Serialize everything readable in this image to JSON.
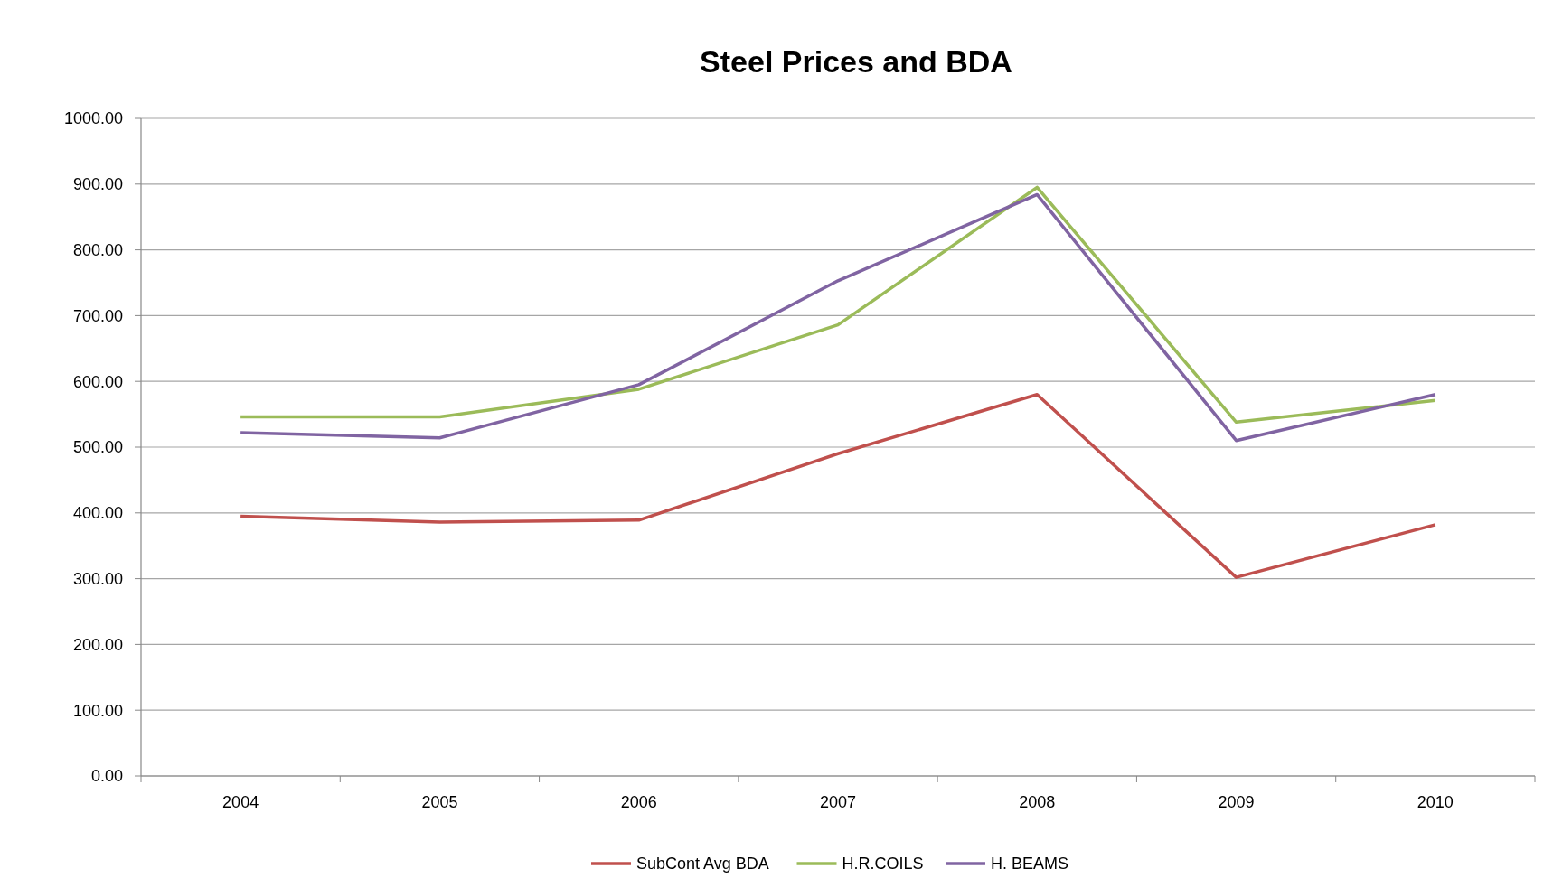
{
  "chart_data": {
    "type": "line",
    "title": "Steel Prices and BDA",
    "categories": [
      "2004",
      "2005",
      "2006",
      "2007",
      "2008",
      "2009",
      "2010"
    ],
    "series": [
      {
        "name": "SubCont Avg BDA",
        "color": "#c0504d",
        "values": [
          395,
          386,
          389,
          490,
          580,
          302,
          382
        ]
      },
      {
        "name": "H.R.COILS",
        "color": "#9bbb59",
        "values": [
          546,
          546,
          588,
          686,
          895,
          538,
          571
        ]
      },
      {
        "name": "H. BEAMS",
        "color": "#8064a2",
        "values": [
          522,
          514,
          595,
          753,
          884,
          510,
          580
        ]
      }
    ],
    "ylim": [
      0,
      1000
    ],
    "yticks": [
      {
        "value": 0,
        "label": "0.00"
      },
      {
        "value": 100,
        "label": "100.00"
      },
      {
        "value": 200,
        "label": "200.00"
      },
      {
        "value": 300,
        "label": "300.00"
      },
      {
        "value": 400,
        "label": "400.00"
      },
      {
        "value": 500,
        "label": "500.00"
      },
      {
        "value": 600,
        "label": "600.00"
      },
      {
        "value": 700,
        "label": "700.00"
      },
      {
        "value": 800,
        "label": "800.00"
      },
      {
        "value": 900,
        "label": "900.00"
      },
      {
        "value": 1000,
        "label": "1000.00"
      }
    ],
    "grid": "y",
    "legend": "bottom",
    "marker": "none",
    "line_style": "solid"
  }
}
